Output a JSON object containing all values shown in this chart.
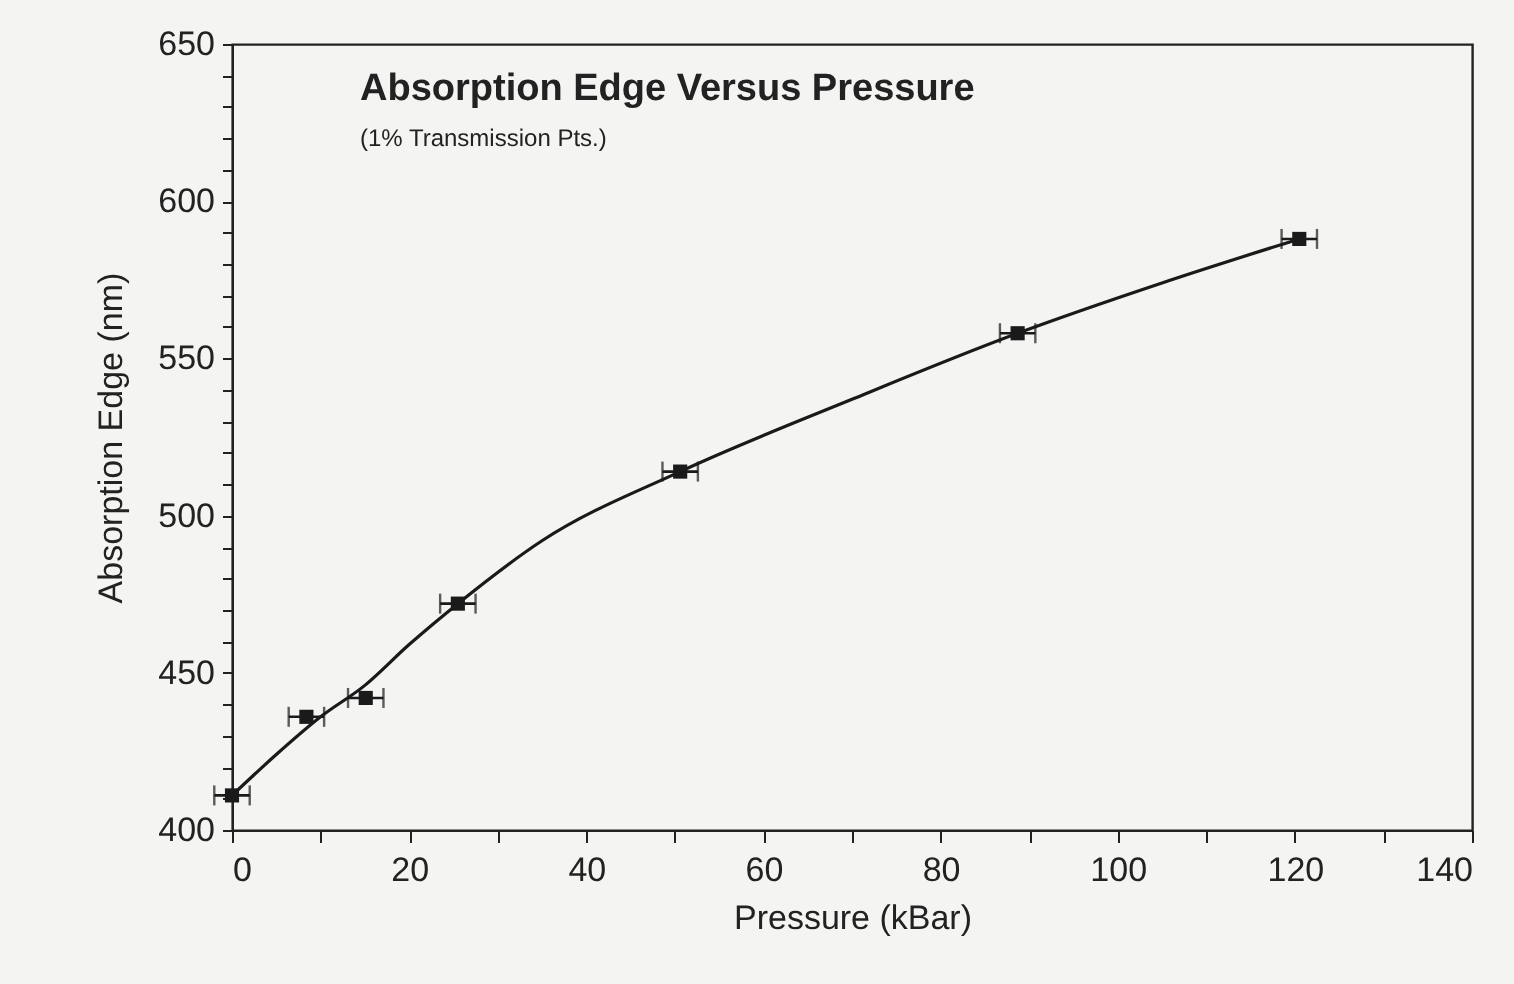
{
  "chart_data": {
    "type": "scatter",
    "title": "Absorption Edge Versus Pressure",
    "annotations": [
      "(1% Transmission Pts.)"
    ],
    "xlabel": "Pressure (kBar)",
    "ylabel": "Absorption Edge (nm)",
    "x": [
      0,
      8.4,
      15.1,
      25.5,
      50.6,
      88.7,
      120.5
    ],
    "series": [
      {
        "color": "#1a1a1a",
        "values": [
          411,
          436,
          442,
          472,
          514,
          558,
          588
        ],
        "xerrors": [
          2,
          2,
          2,
          2,
          2,
          2,
          2
        ],
        "marker": "square"
      },
      {
        "type": "line",
        "color": "#1a1a1a",
        "x": [
          0,
          5,
          10,
          15,
          20,
          25.5,
          35,
          50.6,
          70,
          88.7,
          105,
          120.5
        ],
        "values": [
          411,
          424,
          436,
          446,
          459,
          472,
          492,
          514,
          537,
          558,
          574,
          588
        ],
        "marker": "none",
        "line_style": "solid"
      }
    ],
    "grid": false,
    "xlim": [
      0,
      140
    ],
    "xticks": [
      0,
      {
        "value": 10,
        "label": null
      },
      20,
      {
        "value": 30,
        "label": null
      },
      40,
      {
        "value": 50,
        "label": null
      },
      60,
      {
        "value": 70,
        "label": null
      },
      80,
      {
        "value": 90,
        "label": null
      },
      100,
      {
        "value": 110,
        "label": null
      },
      120,
      {
        "value": 130,
        "label": null
      },
      140
    ],
    "ylim": [
      400,
      650
    ],
    "yticks": [
      400,
      {
        "value": 410,
        "label": null
      },
      {
        "value": 420,
        "label": null
      },
      {
        "value": 430,
        "label": null
      },
      {
        "value": 440,
        "label": null
      },
      450,
      {
        "value": 460,
        "label": null
      },
      {
        "value": 470,
        "label": null
      },
      {
        "value": 480,
        "label": null
      },
      {
        "value": 490,
        "label": null
      },
      500,
      {
        "value": 510,
        "label": null
      },
      {
        "value": 520,
        "label": null
      },
      {
        "value": 530,
        "label": null
      },
      {
        "value": 540,
        "label": null
      },
      550,
      {
        "value": 560,
        "label": null
      },
      {
        "value": 570,
        "label": null
      },
      {
        "value": 580,
        "label": null
      },
      {
        "value": 590,
        "label": null
      },
      600,
      {
        "value": 610,
        "label": null
      },
      {
        "value": 620,
        "label": null
      },
      {
        "value": 630,
        "label": null
      },
      {
        "value": 640,
        "label": null
      },
      650
    ]
  }
}
